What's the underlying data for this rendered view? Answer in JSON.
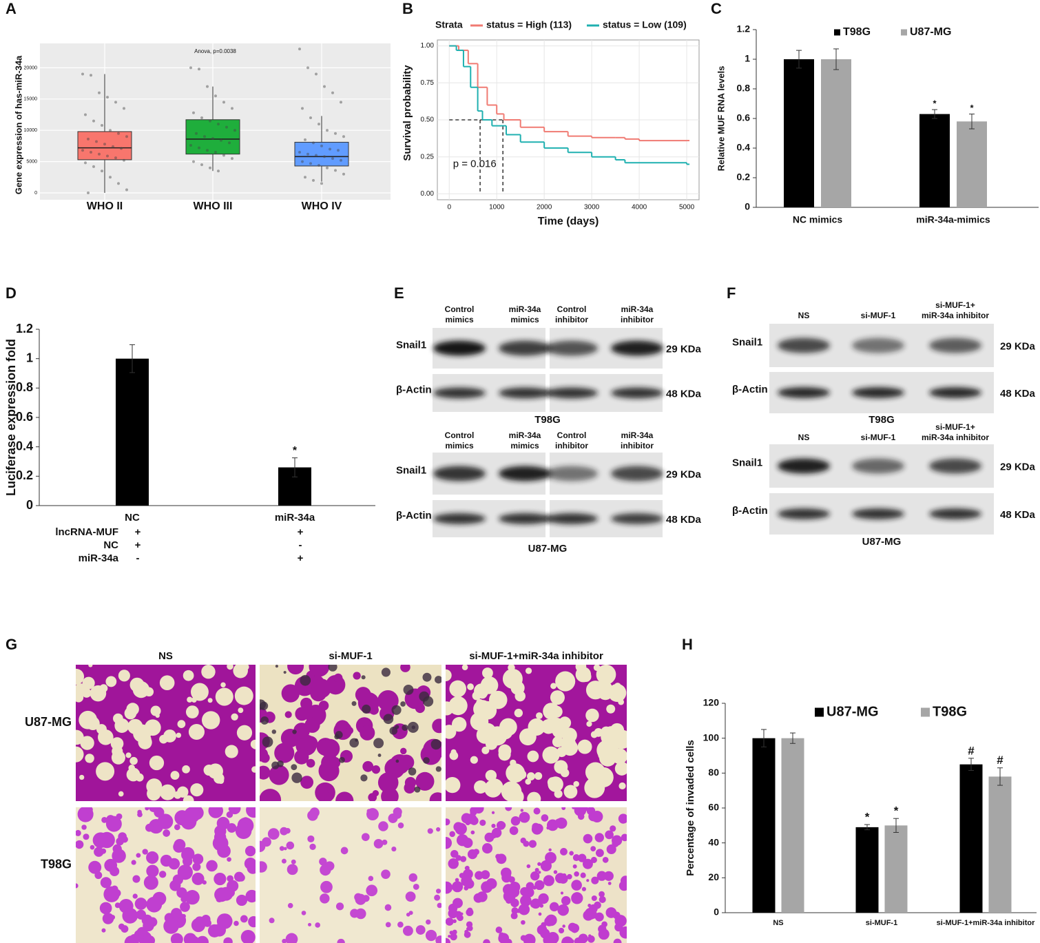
{
  "chart_data": [
    {
      "panel": "A",
      "type": "box",
      "annotation": "Anova, p=0.0038",
      "y_label": "Gene expression of has-miR-34a",
      "categories": [
        "WHO II",
        "WHO III",
        "WHO IV"
      ],
      "colors": [
        "#f8766d",
        "#1fae3c",
        "#619cff"
      ],
      "min": [
        0,
        3500,
        1800
      ],
      "q1": [
        5300,
        6200,
        4300
      ],
      "median": [
        7200,
        8600,
        5800
      ],
      "q3": [
        9800,
        11700,
        8100
      ],
      "max": [
        19000,
        17000,
        12300
      ],
      "points": [
        [
          19000,
          18800,
          16000,
          15300,
          14500,
          13500,
          12500,
          11500,
          10800,
          10000,
          9500,
          9000,
          8600,
          8200,
          7800,
          7400,
          7100,
          6800,
          6500,
          6200,
          5900,
          5600,
          5200,
          4800,
          4200,
          3500,
          2500,
          1500,
          500,
          0
        ],
        [
          20000,
          19800,
          17000,
          15500,
          14500,
          13500,
          12800,
          12000,
          11500,
          11000,
          10500,
          10000,
          9500,
          9000,
          8700,
          8400,
          8000,
          7600,
          7200,
          6800,
          6500,
          6000,
          5500,
          5000,
          4500,
          4000,
          3500
        ],
        [
          23000,
          20000,
          19000,
          17000,
          16000,
          14500,
          13500,
          12000,
          11000,
          10000,
          9500,
          9000,
          8500,
          8000,
          7500,
          7000,
          6800,
          6500,
          6200,
          6000,
          5800,
          5500,
          5200,
          5000,
          4700,
          4400,
          4000,
          3600,
          3000,
          2500,
          2000,
          1500
        ]
      ],
      "ylim": [
        -1100,
        23900
      ],
      "yticks": [
        0,
        5000,
        10000,
        15000,
        20000
      ],
      "grid": true
    },
    {
      "panel": "B",
      "type": "step",
      "legend_title": "Strata",
      "annotation": "p = 0.016",
      "x_label": "Time (days)",
      "y_label": "Survival probability",
      "median_survival": 0.5,
      "series": [
        {
          "name": "status = High (113)",
          "color": "#f07a72",
          "median": 1130,
          "x": [
            0,
            200,
            400,
            600,
            800,
            1000,
            1150,
            1500,
            2000,
            2500,
            3000,
            3500,
            3700,
            4000,
            5000
          ],
          "values": [
            1,
            0.97,
            0.88,
            0.72,
            0.6,
            0.54,
            0.5,
            0.45,
            0.42,
            0.39,
            0.38,
            0.38,
            0.37,
            0.36,
            0.36
          ]
        },
        {
          "name": "status = Low (109)",
          "color": "#1fb0b0",
          "median": 650,
          "x": [
            0,
            150,
            300,
            450,
            600,
            700,
            900,
            1200,
            1500,
            2000,
            2500,
            3000,
            3500,
            3700,
            5000
          ],
          "values": [
            1,
            0.97,
            0.86,
            0.72,
            0.56,
            0.5,
            0.46,
            0.4,
            0.35,
            0.31,
            0.28,
            0.25,
            0.23,
            0.21,
            0.2
          ]
        }
      ],
      "xlim": [
        -250,
        5260
      ],
      "xticks": [
        0,
        1000,
        2000,
        3000,
        4000,
        5000
      ],
      "ylim": [
        -0.04,
        1.04
      ],
      "yticks": [
        {
          "value": 0,
          "label": "0.00"
        },
        {
          "value": 0.25,
          "label": "0.25"
        },
        {
          "value": 0.5,
          "label": "0.50"
        },
        {
          "value": 0.75,
          "label": "0.75"
        },
        {
          "value": 1,
          "label": "1.00"
        }
      ],
      "grid": true
    },
    {
      "panel": "C",
      "type": "bar",
      "y_label": "Relative MUF RNA levels",
      "categories": [
        "NC mimics",
        "miR-34a-mimics"
      ],
      "series": [
        {
          "name": "T98G",
          "color": "#000000",
          "values": [
            1,
            0.63
          ],
          "errors": [
            0.06,
            0.03
          ],
          "markers": [
            null,
            "*"
          ]
        },
        {
          "name": "U87-MG",
          "color": "#a6a6a6",
          "values": [
            1,
            0.58
          ],
          "errors": [
            0.07,
            0.05
          ],
          "markers": [
            null,
            "*"
          ]
        }
      ],
      "ylim": [
        0,
        1.2
      ],
      "yticks": [
        0,
        0.2,
        0.4,
        0.6,
        0.8,
        1,
        1.2
      ],
      "legend": "top"
    },
    {
      "panel": "D",
      "type": "bar",
      "y_label": "Luciferase expression fold",
      "categories": [
        "NC",
        "miR-34a"
      ],
      "color": "#000000",
      "values": [
        1,
        0.26
      ],
      "errors": [
        0.095,
        0.065
      ],
      "markers": [
        null,
        "*"
      ],
      "ylim": [
        0,
        1.2
      ],
      "yticks": [
        0,
        0.2,
        0.4,
        0.6,
        0.8,
        1,
        1.2
      ],
      "conditions": [
        {
          "label": "lncRNA-MUF",
          "values": [
            "+",
            "+"
          ]
        },
        {
          "label": "NC",
          "values": [
            "+",
            "-"
          ]
        },
        {
          "label": "miR-34a",
          "values": [
            "-",
            "+"
          ]
        }
      ]
    },
    {
      "panel": "H",
      "type": "bar",
      "y_label": "Percentage of invaded cells",
      "categories": [
        "NS",
        "si-MUF-1",
        "si-MUF-1+miR-34a inhibitor"
      ],
      "series": [
        {
          "name": "U87-MG",
          "color": "#000000",
          "values": [
            100,
            49,
            85
          ],
          "errors": [
            5,
            1.5,
            3.5
          ],
          "markers": [
            null,
            "*",
            "#"
          ]
        },
        {
          "name": "T98G",
          "color": "#a6a6a6",
          "values": [
            100,
            50,
            78
          ],
          "errors": [
            3,
            4,
            5
          ],
          "markers": [
            null,
            "*",
            "#"
          ]
        }
      ],
      "ylim": [
        0,
        120
      ],
      "yticks": [
        0,
        20,
        40,
        60,
        80,
        100,
        120
      ],
      "legend": "top"
    }
  ],
  "blots": [
    {
      "panel": "E",
      "blocks": [
        {
          "columns": [
            [
              "Control",
              "mimics"
            ],
            [
              "miR-34a",
              "mimics"
            ],
            [
              "Control",
              "inhibitor"
            ],
            [
              "miR-34a",
              "inhibitor"
            ]
          ],
          "rows": [
            {
              "protein": "Snail1",
              "size": "29 KDa"
            },
            {
              "protein": "β-Actin",
              "size": "48 KDa"
            }
          ],
          "cell_line": "T98G"
        },
        {
          "columns": [
            [
              "Control",
              "mimics"
            ],
            [
              "miR-34a",
              "mimics"
            ],
            [
              "Control",
              "inhibitor"
            ],
            [
              "miR-34a",
              "inhibitor"
            ]
          ],
          "rows": [
            {
              "protein": "Snail1",
              "size": "29 KDa"
            },
            {
              "protein": "β-Actin",
              "size": "48 KDa"
            }
          ],
          "cell_line": "U87-MG"
        }
      ]
    },
    {
      "panel": "F",
      "blocks": [
        {
          "columns": [
            [
              "NS"
            ],
            [
              "si-MUF-1"
            ],
            [
              "si-MUF-1+",
              "miR-34a inhibitor"
            ]
          ],
          "rows": [
            {
              "protein": "Snail1",
              "size": "29 KDa"
            },
            {
              "protein": "β-Actin",
              "size": "48 KDa"
            }
          ],
          "cell_line": "T98G"
        },
        {
          "columns": [
            [
              "NS"
            ],
            [
              "si-MUF-1"
            ],
            [
              "si-MUF-1+",
              "miR-34a inhibitor"
            ]
          ],
          "rows": [
            {
              "protein": "Snail1",
              "size": "29 KDa"
            },
            {
              "protein": "β-Actin",
              "size": "48 KDa"
            }
          ],
          "cell_line": "U87-MG"
        }
      ]
    }
  ],
  "invasion": {
    "panel": "G",
    "columns": [
      "NS",
      "si-MUF-1",
      "si-MUF-1+miR-34a inhibitor"
    ],
    "rows": [
      "U87-MG",
      "T98G"
    ]
  }
}
